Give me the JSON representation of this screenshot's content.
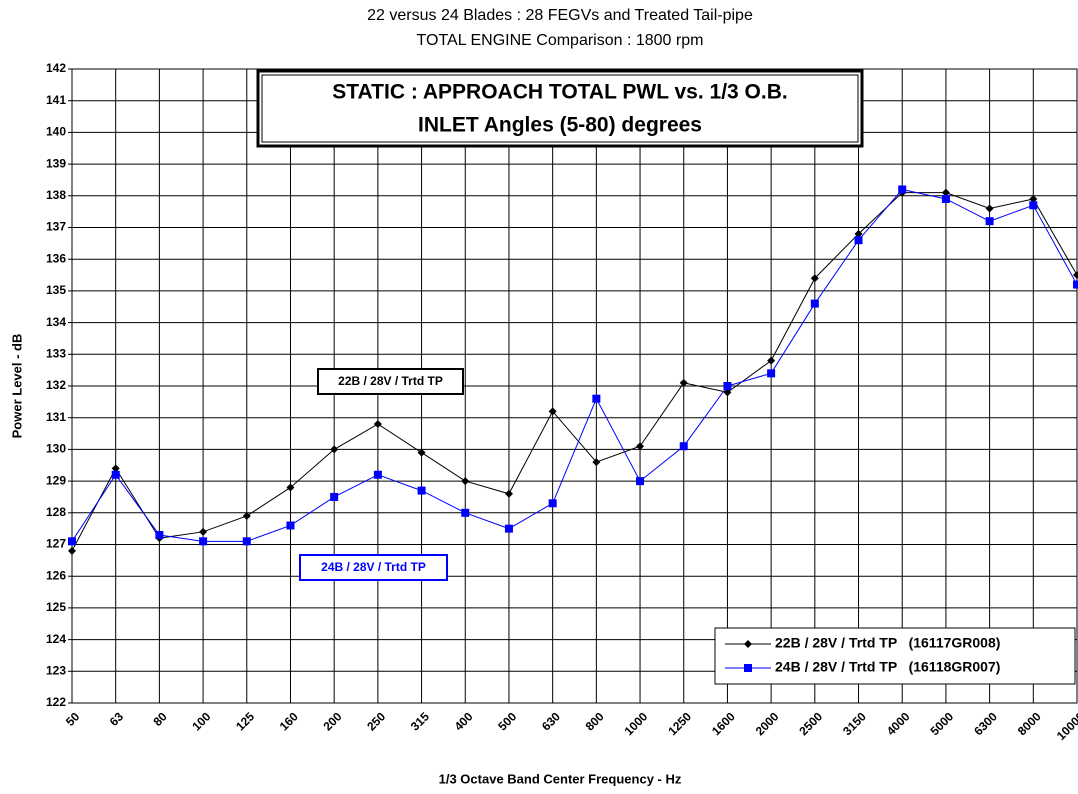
{
  "chart_data": {
    "type": "line",
    "title": [
      "22 versus 24 Blades : 28 FEGVs and Treated Tail-pipe",
      "TOTAL ENGINE Comparison : 1800 rpm"
    ],
    "inner_title": [
      "STATIC : APPROACH TOTAL PWL vs. 1/3 O.B.",
      "INLET Angles (5-80) degrees"
    ],
    "xlabel": "1/3 Octave Band Center Frequency - Hz",
    "ylabel": "Power Level - dB",
    "categories": [
      "50",
      "63",
      "80",
      "100",
      "125",
      "160",
      "200",
      "250",
      "315",
      "400",
      "500",
      "630",
      "800",
      "1000",
      "1250",
      "1600",
      "2000",
      "2500",
      "3150",
      "4000",
      "5000",
      "6300",
      "8000",
      "10000"
    ],
    "series": [
      {
        "name": "22B / 28V / Trtd TP   (16117GR008)",
        "color": "#000000",
        "marker": "diamond",
        "values": [
          126.8,
          129.4,
          127.2,
          127.4,
          127.9,
          128.8,
          130.0,
          130.8,
          129.9,
          129.0,
          128.6,
          131.2,
          129.6,
          130.1,
          132.1,
          131.8,
          132.8,
          135.4,
          136.8,
          138.1,
          138.1,
          137.6,
          137.9,
          135.5
        ]
      },
      {
        "name": "24B / 28V / Trtd TP   (16118GR007)",
        "color": "#0000ff",
        "marker": "square",
        "values": [
          127.1,
          129.2,
          127.3,
          127.1,
          127.1,
          127.6,
          128.5,
          129.2,
          128.7,
          128.0,
          127.5,
          128.3,
          131.6,
          129.0,
          130.1,
          132.0,
          132.4,
          134.6,
          136.6,
          138.2,
          137.9,
          137.2,
          137.7,
          135.2
        ]
      }
    ],
    "annotations": [
      {
        "text": "22B / 28V / Trtd TP",
        "color": "#000000"
      },
      {
        "text": "24B / 28V / Trtd TP",
        "color": "#0000ff"
      }
    ],
    "ylim": [
      122,
      142
    ],
    "yticks": [
      122,
      123,
      124,
      125,
      126,
      127,
      128,
      129,
      130,
      131,
      132,
      133,
      134,
      135,
      136,
      137,
      138,
      139,
      140,
      141,
      142
    ],
    "grid": true,
    "legend": "lower right"
  }
}
